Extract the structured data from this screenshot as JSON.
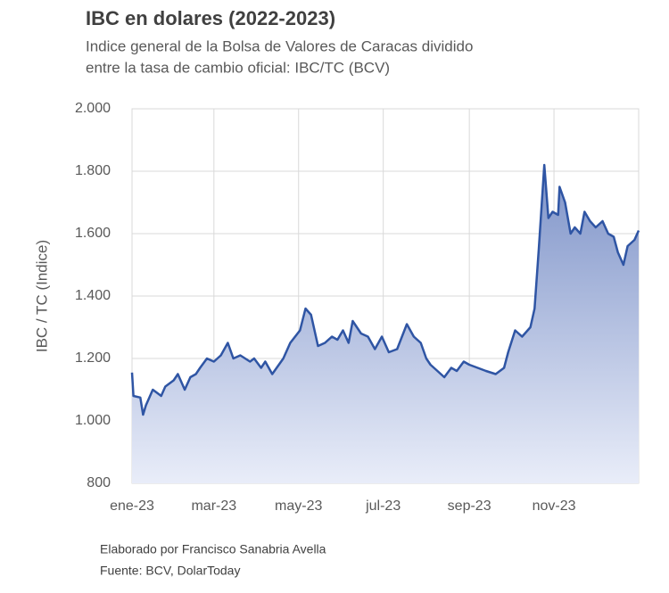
{
  "chart_data": {
    "type": "area",
    "title": "IBC en dolares (2022-2023)",
    "subtitle": [
      "Indice general de la Bolsa de Valores de Caracas dividido",
      "entre la tasa de cambio oficial: IBC/TC (BCV)"
    ],
    "ylabel": "IBC / TC (Indice)",
    "notes": [
      "Elaborado por Francisco Sanabria Avella",
      "Fuente: BCV, DolarToday"
    ],
    "color": "#2f55a4",
    "grid": true,
    "xlim": [
      0,
      365
    ],
    "xticks": [
      {
        "value": 0,
        "label": "ene-23"
      },
      {
        "value": 59,
        "label": "mar-23"
      },
      {
        "value": 120,
        "label": "may-23"
      },
      {
        "value": 181,
        "label": "jul-23"
      },
      {
        "value": 243,
        "label": "sep-23"
      },
      {
        "value": 304,
        "label": "nov-23"
      }
    ],
    "ylim": [
      800,
      2000
    ],
    "yticks": [
      800,
      {
        "value": 1000,
        "label": "1.000"
      },
      {
        "value": 1200,
        "label": "1.200"
      },
      {
        "value": 1400,
        "label": "1.400"
      },
      {
        "value": 1600,
        "label": "1.600"
      },
      {
        "value": 1800,
        "label": "1.800"
      },
      {
        "value": 2000,
        "label": "2.000"
      }
    ],
    "x": [
      0,
      1,
      6,
      8,
      10,
      15,
      21,
      24,
      30,
      33,
      38,
      42,
      46,
      49,
      54,
      59,
      64,
      69,
      73,
      78,
      85,
      88,
      93,
      96,
      101,
      109,
      114,
      121,
      125,
      129,
      134,
      139,
      144,
      148,
      152,
      156,
      159,
      165,
      170,
      175,
      180,
      185,
      191,
      198,
      203,
      208,
      212,
      215,
      220,
      225,
      230,
      234,
      239,
      243,
      249,
      255,
      262,
      268,
      271,
      276,
      281,
      287,
      290,
      293,
      297,
      300,
      303,
      307,
      308,
      312,
      316,
      319,
      323,
      326,
      330,
      334,
      339,
      343,
      347,
      350,
      354,
      357,
      362,
      365
    ],
    "values": [
      1155,
      1080,
      1075,
      1020,
      1050,
      1100,
      1080,
      1110,
      1130,
      1150,
      1100,
      1140,
      1150,
      1170,
      1200,
      1190,
      1210,
      1250,
      1200,
      1210,
      1190,
      1200,
      1170,
      1190,
      1150,
      1200,
      1250,
      1290,
      1360,
      1340,
      1240,
      1250,
      1270,
      1260,
      1290,
      1250,
      1320,
      1280,
      1270,
      1230,
      1270,
      1220,
      1230,
      1310,
      1270,
      1250,
      1200,
      1180,
      1160,
      1140,
      1170,
      1160,
      1190,
      1180,
      1170,
      1160,
      1150,
      1170,
      1220,
      1290,
      1270,
      1300,
      1360,
      1550,
      1820,
      1650,
      1670,
      1660,
      1750,
      1700,
      1600,
      1620,
      1600,
      1670,
      1640,
      1620,
      1640,
      1600,
      1590,
      1540,
      1500,
      1560,
      1580,
      1610
    ]
  }
}
